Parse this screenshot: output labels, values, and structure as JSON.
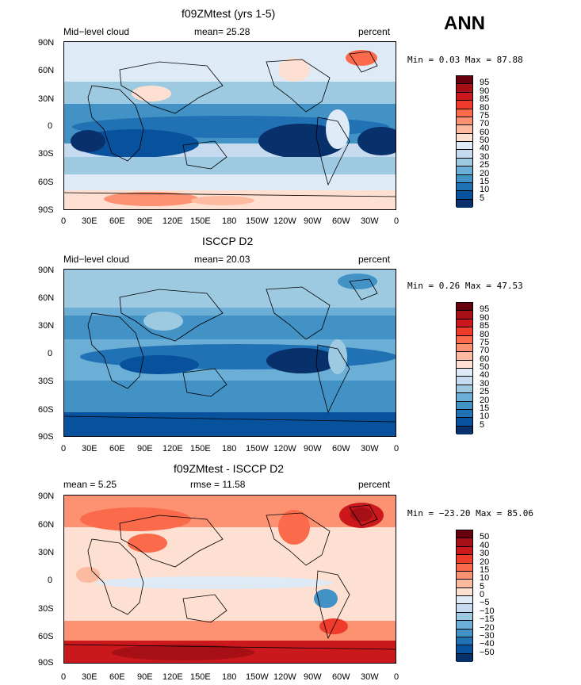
{
  "header": {
    "season": "ANN"
  },
  "panels": [
    {
      "title": "f09ZMtest (yrs 1-5)",
      "left_label": "Mid−level cloud",
      "center_label": "mean=  25.28",
      "right_label": "percent",
      "min_max": "Min =    0.03 Max =   87.88",
      "colorbar": {
        "labels": [
          "95",
          "90",
          "85",
          "80",
          "75",
          "70",
          "60",
          "50",
          "40",
          "30",
          "25",
          "20",
          "15",
          "10",
          "5"
        ],
        "colors": [
          "#67000d",
          "#a50f15",
          "#cb181d",
          "#ef3b2c",
          "#fb6a4a",
          "#fc9272",
          "#fcbba1",
          "#fee0d2",
          "#deebf7",
          "#c6dbef",
          "#9ecae1",
          "#6baed6",
          "#4292c6",
          "#2171b5",
          "#08519c",
          "#08306b"
        ]
      }
    },
    {
      "title": "ISCCP D2",
      "left_label": "Mid−level cloud",
      "center_label": "mean=  20.03",
      "right_label": "percent",
      "min_max": "Min =    0.26 Max =   47.53",
      "colorbar": {
        "labels": [
          "95",
          "90",
          "85",
          "80",
          "75",
          "70",
          "60",
          "50",
          "40",
          "30",
          "25",
          "20",
          "15",
          "10",
          "5"
        ],
        "colors": [
          "#67000d",
          "#a50f15",
          "#cb181d",
          "#ef3b2c",
          "#fb6a4a",
          "#fc9272",
          "#fcbba1",
          "#fee0d2",
          "#deebf7",
          "#c6dbef",
          "#9ecae1",
          "#6baed6",
          "#4292c6",
          "#2171b5",
          "#08519c",
          "#08306b"
        ]
      }
    },
    {
      "title": "f09ZMtest - ISCCP D2",
      "left_label": "mean =    5.25",
      "center_label": "rmse =   11.58",
      "right_label": "percent",
      "min_max": "Min = −23.20 Max =   85.06",
      "colorbar": {
        "labels": [
          "50",
          "40",
          "30",
          "20",
          "15",
          "10",
          "5",
          "0",
          "−5",
          "−10",
          "−15",
          "−20",
          "−30",
          "−40",
          "−50"
        ],
        "colors": [
          "#67000d",
          "#a50f15",
          "#cb181d",
          "#ef3b2c",
          "#fb6a4a",
          "#fc9272",
          "#fcbba1",
          "#fee0d2",
          "#deebf7",
          "#c6dbef",
          "#9ecae1",
          "#6baed6",
          "#4292c6",
          "#2171b5",
          "#08519c",
          "#08306b"
        ]
      }
    }
  ],
  "axes": {
    "lat_ticks": [
      "90N",
      "60N",
      "30N",
      "0",
      "30S",
      "60S",
      "90S"
    ],
    "lon_ticks": [
      "0",
      "30E",
      "60E",
      "90E",
      "120E",
      "150E",
      "180",
      "150W",
      "120W",
      "90W",
      "60W",
      "30W",
      "0"
    ]
  }
}
